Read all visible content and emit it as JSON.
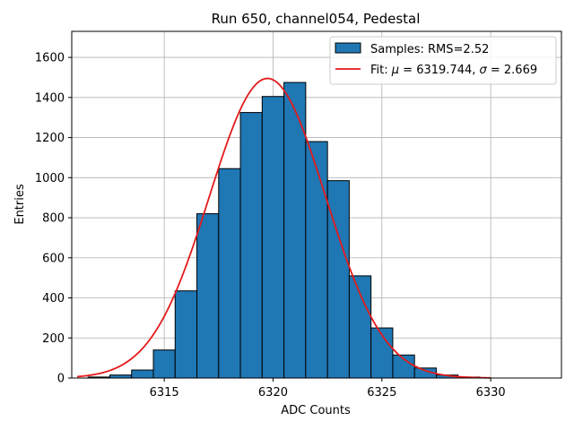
{
  "chart_data": {
    "type": "bar",
    "title": "Run 650, channel054, Pedestal",
    "xlabel": "ADC Counts",
    "ylabel": "Entries",
    "xlim": [
      6310.75,
      6333.25
    ],
    "ylim": [
      0,
      1730
    ],
    "xticks": [
      6315,
      6320,
      6325,
      6330
    ],
    "yticks": [
      0,
      200,
      400,
      600,
      800,
      1000,
      1200,
      1400,
      1600
    ],
    "grid": true,
    "legend_position": "top-right",
    "bin_width": 1,
    "bins": [
      {
        "x": 6312,
        "value": 5
      },
      {
        "x": 6313,
        "value": 15
      },
      {
        "x": 6314,
        "value": 40
      },
      {
        "x": 6315,
        "value": 140
      },
      {
        "x": 6316,
        "value": 435
      },
      {
        "x": 6317,
        "value": 820
      },
      {
        "x": 6318,
        "value": 1045
      },
      {
        "x": 6319,
        "value": 1325
      },
      {
        "x": 6320,
        "value": 1405
      },
      {
        "x": 6321,
        "value": 1475
      },
      {
        "x": 6322,
        "value": 1180
      },
      {
        "x": 6323,
        "value": 985
      },
      {
        "x": 6324,
        "value": 510
      },
      {
        "x": 6325,
        "value": 250
      },
      {
        "x": 6326,
        "value": 115
      },
      {
        "x": 6327,
        "value": 50
      },
      {
        "x": 6328,
        "value": 15
      },
      {
        "x": 6329,
        "value": 5
      }
    ],
    "fit": {
      "mu": 6319.744,
      "sigma": 2.669,
      "amplitude": 1495,
      "x_range": [
        6311,
        6330
      ]
    },
    "legend": [
      {
        "label": "Samples: RMS=2.52",
        "kind": "bar",
        "color": "#1f77b4"
      },
      {
        "label_prefix": "Fit: ",
        "mu_symbol": "μ",
        "mu_text": " = 6319.744, ",
        "sigma_symbol": "σ",
        "sigma_text": " = 2.669",
        "kind": "line",
        "color": "#e41a1c"
      }
    ],
    "colors": {
      "bar_fill": "#1f77b4",
      "bar_edge": "#000000",
      "fit_line": "#e41a1c",
      "grid": "#b0b0b0"
    }
  }
}
